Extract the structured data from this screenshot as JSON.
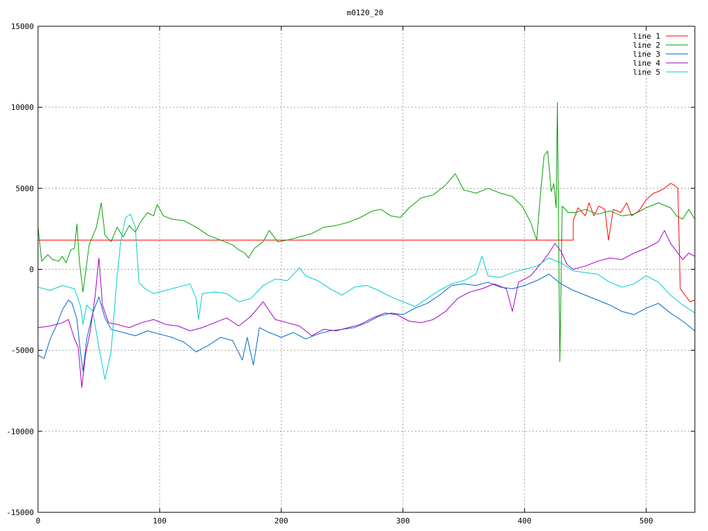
{
  "chart_data": {
    "type": "line",
    "title": "m0120_20",
    "xlabel": "",
    "ylabel": "",
    "xlim": [
      0,
      540
    ],
    "ylim": [
      -15000,
      15000
    ],
    "xticks": [
      0,
      100,
      200,
      300,
      400,
      500
    ],
    "yticks": [
      -15000,
      -10000,
      -5000,
      0,
      5000,
      10000,
      15000
    ],
    "grid": true,
    "legend_position": "top-right",
    "series": [
      {
        "name": "line 1",
        "color": "#ff0000",
        "points": [
          [
            0,
            1800
          ],
          [
            440,
            1800
          ],
          [
            440,
            3000
          ],
          [
            444,
            3800
          ],
          [
            450,
            3300
          ],
          [
            453,
            4100
          ],
          [
            457,
            3300
          ],
          [
            461,
            3900
          ],
          [
            466,
            3700
          ],
          [
            469,
            1800
          ],
          [
            473,
            3700
          ],
          [
            479,
            3500
          ],
          [
            484,
            4100
          ],
          [
            488,
            3300
          ],
          [
            494,
            3600
          ],
          [
            500,
            4300
          ],
          [
            506,
            4700
          ],
          [
            510,
            4800
          ],
          [
            515,
            5000
          ],
          [
            520,
            5300
          ],
          [
            523,
            5200
          ],
          [
            526,
            5000
          ],
          [
            528,
            -1200
          ],
          [
            532,
            -1600
          ],
          [
            536,
            -2000
          ],
          [
            540,
            -1900
          ]
        ]
      },
      {
        "name": "line 2",
        "color": "#00a000",
        "points": [
          [
            0,
            2600
          ],
          [
            3,
            500
          ],
          [
            8,
            900
          ],
          [
            12,
            600
          ],
          [
            17,
            500
          ],
          [
            20,
            800
          ],
          [
            23,
            400
          ],
          [
            27,
            1200
          ],
          [
            30,
            1300
          ],
          [
            32,
            2800
          ],
          [
            34,
            500
          ],
          [
            37,
            -1400
          ],
          [
            42,
            1500
          ],
          [
            48,
            2600
          ],
          [
            52,
            4100
          ],
          [
            55,
            2100
          ],
          [
            60,
            1700
          ],
          [
            65,
            2600
          ],
          [
            70,
            2000
          ],
          [
            75,
            2700
          ],
          [
            80,
            2300
          ],
          [
            85,
            3000
          ],
          [
            90,
            3500
          ],
          [
            95,
            3300
          ],
          [
            98,
            4000
          ],
          [
            103,
            3300
          ],
          [
            110,
            3100
          ],
          [
            120,
            3000
          ],
          [
            130,
            2600
          ],
          [
            140,
            2100
          ],
          [
            150,
            1800
          ],
          [
            160,
            1500
          ],
          [
            165,
            1200
          ],
          [
            170,
            1000
          ],
          [
            173,
            700
          ],
          [
            178,
            1300
          ],
          [
            185,
            1700
          ],
          [
            190,
            2400
          ],
          [
            197,
            1700
          ],
          [
            205,
            1800
          ],
          [
            215,
            2000
          ],
          [
            225,
            2200
          ],
          [
            235,
            2600
          ],
          [
            245,
            2700
          ],
          [
            255,
            2900
          ],
          [
            265,
            3200
          ],
          [
            275,
            3600
          ],
          [
            282,
            3700
          ],
          [
            290,
            3300
          ],
          [
            298,
            3200
          ],
          [
            305,
            3800
          ],
          [
            315,
            4400
          ],
          [
            325,
            4600
          ],
          [
            335,
            5200
          ],
          [
            343,
            5900
          ],
          [
            350,
            4900
          ],
          [
            360,
            4700
          ],
          [
            370,
            5000
          ],
          [
            380,
            4700
          ],
          [
            390,
            4500
          ],
          [
            398,
            3900
          ],
          [
            405,
            2900
          ],
          [
            410,
            1800
          ],
          [
            413,
            4600
          ],
          [
            416,
            7000
          ],
          [
            419,
            7300
          ],
          [
            422,
            4800
          ],
          [
            424,
            5300
          ],
          [
            426,
            3800
          ],
          [
            427,
            10300
          ],
          [
            429,
            -5700
          ],
          [
            431,
            3900
          ],
          [
            436,
            3500
          ],
          [
            442,
            3500
          ],
          [
            450,
            3700
          ],
          [
            460,
            3400
          ],
          [
            470,
            3600
          ],
          [
            480,
            3300
          ],
          [
            490,
            3400
          ],
          [
            500,
            3800
          ],
          [
            510,
            4100
          ],
          [
            520,
            3800
          ],
          [
            525,
            3300
          ],
          [
            530,
            3100
          ],
          [
            535,
            3700
          ],
          [
            540,
            3100
          ]
        ]
      },
      {
        "name": "line 3",
        "color": "#0066cc",
        "points": [
          [
            0,
            -5300
          ],
          [
            5,
            -5500
          ],
          [
            10,
            -4300
          ],
          [
            15,
            -3500
          ],
          [
            20,
            -2500
          ],
          [
            25,
            -1900
          ],
          [
            28,
            -2100
          ],
          [
            32,
            -3100
          ],
          [
            35,
            -5200
          ],
          [
            37,
            -6300
          ],
          [
            40,
            -4300
          ],
          [
            45,
            -2700
          ],
          [
            50,
            -1700
          ],
          [
            55,
            -3000
          ],
          [
            60,
            -3700
          ],
          [
            70,
            -3900
          ],
          [
            80,
            -4100
          ],
          [
            90,
            -3800
          ],
          [
            100,
            -4000
          ],
          [
            110,
            -4200
          ],
          [
            120,
            -4500
          ],
          [
            130,
            -5100
          ],
          [
            140,
            -4700
          ],
          [
            150,
            -4200
          ],
          [
            160,
            -4400
          ],
          [
            168,
            -5600
          ],
          [
            172,
            -4200
          ],
          [
            177,
            -5900
          ],
          [
            182,
            -3600
          ],
          [
            190,
            -3900
          ],
          [
            200,
            -4200
          ],
          [
            210,
            -3900
          ],
          [
            220,
            -4300
          ],
          [
            230,
            -4000
          ],
          [
            240,
            -3800
          ],
          [
            250,
            -3700
          ],
          [
            260,
            -3600
          ],
          [
            270,
            -3300
          ],
          [
            280,
            -2900
          ],
          [
            290,
            -2700
          ],
          [
            300,
            -2800
          ],
          [
            310,
            -2400
          ],
          [
            320,
            -2100
          ],
          [
            330,
            -1600
          ],
          [
            340,
            -1000
          ],
          [
            350,
            -900
          ],
          [
            360,
            -1000
          ],
          [
            370,
            -800
          ],
          [
            380,
            -1100
          ],
          [
            390,
            -1200
          ],
          [
            400,
            -1000
          ],
          [
            410,
            -700
          ],
          [
            420,
            -300
          ],
          [
            430,
            -900
          ],
          [
            440,
            -1300
          ],
          [
            450,
            -1600
          ],
          [
            460,
            -1900
          ],
          [
            470,
            -2200
          ],
          [
            480,
            -2600
          ],
          [
            490,
            -2800
          ],
          [
            500,
            -2400
          ],
          [
            510,
            -2100
          ],
          [
            520,
            -2700
          ],
          [
            530,
            -3200
          ],
          [
            540,
            -3800
          ]
        ]
      },
      {
        "name": "line 4",
        "color": "#a000c0",
        "points": [
          [
            0,
            -3600
          ],
          [
            10,
            -3500
          ],
          [
            20,
            -3300
          ],
          [
            25,
            -3100
          ],
          [
            30,
            -4300
          ],
          [
            33,
            -4800
          ],
          [
            36,
            -7300
          ],
          [
            39,
            -5300
          ],
          [
            43,
            -3800
          ],
          [
            47,
            -1600
          ],
          [
            50,
            700
          ],
          [
            53,
            -2200
          ],
          [
            58,
            -3300
          ],
          [
            65,
            -3400
          ],
          [
            75,
            -3600
          ],
          [
            85,
            -3300
          ],
          [
            95,
            -3100
          ],
          [
            105,
            -3400
          ],
          [
            115,
            -3500
          ],
          [
            125,
            -3800
          ],
          [
            135,
            -3600
          ],
          [
            145,
            -3300
          ],
          [
            155,
            -3000
          ],
          [
            165,
            -3500
          ],
          [
            175,
            -2900
          ],
          [
            185,
            -2000
          ],
          [
            195,
            -3100
          ],
          [
            205,
            -3300
          ],
          [
            215,
            -3500
          ],
          [
            225,
            -4100
          ],
          [
            235,
            -3700
          ],
          [
            245,
            -3800
          ],
          [
            255,
            -3600
          ],
          [
            265,
            -3400
          ],
          [
            275,
            -3000
          ],
          [
            285,
            -2700
          ],
          [
            295,
            -2800
          ],
          [
            305,
            -3200
          ],
          [
            315,
            -3300
          ],
          [
            325,
            -3100
          ],
          [
            335,
            -2600
          ],
          [
            345,
            -1800
          ],
          [
            355,
            -1400
          ],
          [
            365,
            -1200
          ],
          [
            375,
            -900
          ],
          [
            385,
            -1200
          ],
          [
            390,
            -2600
          ],
          [
            395,
            -800
          ],
          [
            405,
            -400
          ],
          [
            415,
            500
          ],
          [
            420,
            1000
          ],
          [
            425,
            1600
          ],
          [
            430,
            1100
          ],
          [
            435,
            300
          ],
          [
            440,
            0
          ],
          [
            450,
            200
          ],
          [
            460,
            500
          ],
          [
            470,
            700
          ],
          [
            480,
            600
          ],
          [
            490,
            1000
          ],
          [
            500,
            1300
          ],
          [
            510,
            1700
          ],
          [
            515,
            2400
          ],
          [
            520,
            1600
          ],
          [
            525,
            1100
          ],
          [
            530,
            600
          ],
          [
            535,
            1000
          ],
          [
            540,
            800
          ]
        ]
      },
      {
        "name": "line 5",
        "color": "#00cccc",
        "points": [
          [
            0,
            -1100
          ],
          [
            10,
            -1300
          ],
          [
            20,
            -1000
          ],
          [
            30,
            -1200
          ],
          [
            35,
            -2300
          ],
          [
            37,
            -3400
          ],
          [
            40,
            -2200
          ],
          [
            45,
            -2600
          ],
          [
            50,
            -4800
          ],
          [
            55,
            -6800
          ],
          [
            60,
            -5100
          ],
          [
            65,
            -400
          ],
          [
            68,
            1700
          ],
          [
            72,
            3200
          ],
          [
            76,
            3400
          ],
          [
            80,
            2600
          ],
          [
            83,
            -800
          ],
          [
            88,
            -1200
          ],
          [
            95,
            -1500
          ],
          [
            105,
            -1300
          ],
          [
            115,
            -1100
          ],
          [
            125,
            -900
          ],
          [
            130,
            -1800
          ],
          [
            132,
            -3100
          ],
          [
            135,
            -1500
          ],
          [
            145,
            -1400
          ],
          [
            155,
            -1500
          ],
          [
            165,
            -2000
          ],
          [
            175,
            -1800
          ],
          [
            185,
            -1000
          ],
          [
            195,
            -600
          ],
          [
            205,
            -700
          ],
          [
            215,
            100
          ],
          [
            220,
            -400
          ],
          [
            230,
            -700
          ],
          [
            240,
            -1200
          ],
          [
            250,
            -1600
          ],
          [
            260,
            -1100
          ],
          [
            270,
            -1000
          ],
          [
            280,
            -1300
          ],
          [
            290,
            -1700
          ],
          [
            300,
            -2000
          ],
          [
            310,
            -2300
          ],
          [
            320,
            -1800
          ],
          [
            330,
            -1300
          ],
          [
            340,
            -900
          ],
          [
            350,
            -700
          ],
          [
            360,
            -300
          ],
          [
            365,
            800
          ],
          [
            370,
            -400
          ],
          [
            380,
            -500
          ],
          [
            390,
            -200
          ],
          [
            400,
            0
          ],
          [
            410,
            200
          ],
          [
            420,
            700
          ],
          [
            430,
            400
          ],
          [
            440,
            -100
          ],
          [
            450,
            -200
          ],
          [
            460,
            -300
          ],
          [
            470,
            -800
          ],
          [
            480,
            -1100
          ],
          [
            490,
            -900
          ],
          [
            500,
            -400
          ],
          [
            510,
            -800
          ],
          [
            520,
            -1600
          ],
          [
            530,
            -2200
          ],
          [
            540,
            -2700
          ]
        ]
      }
    ]
  }
}
